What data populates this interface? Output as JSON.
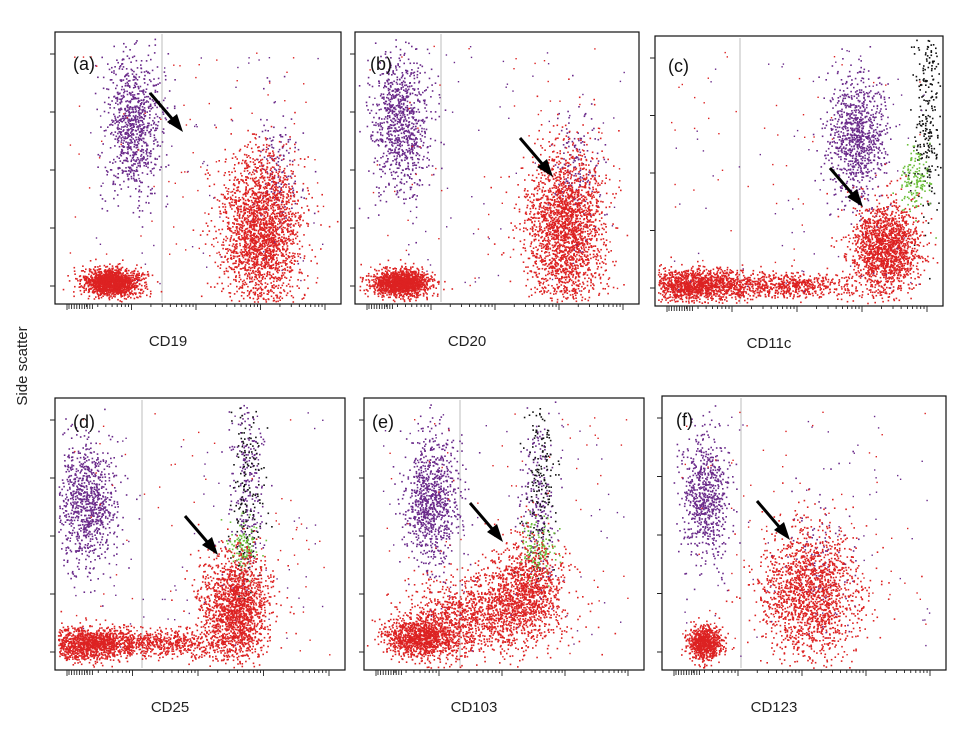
{
  "figure": {
    "y_axis_label": "Side scatter"
  },
  "chart_data": [
    {
      "type": "scatter",
      "panel_label": "(a)",
      "xlabel": "CD19",
      "x_scale": "log",
      "gate_line": true,
      "arrow": true,
      "series": [
        {
          "color": "#dd2222"
        },
        {
          "color": "#6a2a8a"
        },
        {
          "color": "#111111"
        }
      ],
      "clusters": [
        {
          "series": 0,
          "cx": 0.2,
          "cy": 0.08,
          "sx": 0.05,
          "sy": 0.025,
          "n": 1500
        },
        {
          "series": 0,
          "cx": 0.72,
          "cy": 0.27,
          "sx": 0.07,
          "sy": 0.14,
          "n": 2300
        },
        {
          "series": 1,
          "cx": 0.27,
          "cy": 0.66,
          "sx": 0.05,
          "sy": 0.13,
          "n": 900
        },
        {
          "series": 1,
          "cx": 0.78,
          "cy": 0.5,
          "sx": 0.04,
          "sy": 0.12,
          "n": 150
        }
      ]
    },
    {
      "type": "scatter",
      "panel_label": "(b)",
      "xlabel": "CD20",
      "x_scale": "log",
      "gate_line": true,
      "arrow": true,
      "series": [
        {
          "color": "#dd2222"
        },
        {
          "color": "#6a2a8a"
        },
        {
          "color": "#111111"
        }
      ],
      "clusters": [
        {
          "series": 0,
          "cx": 0.16,
          "cy": 0.08,
          "sx": 0.05,
          "sy": 0.025,
          "n": 1500
        },
        {
          "series": 0,
          "cx": 0.74,
          "cy": 0.28,
          "sx": 0.07,
          "sy": 0.14,
          "n": 2200
        },
        {
          "series": 1,
          "cx": 0.16,
          "cy": 0.66,
          "sx": 0.05,
          "sy": 0.13,
          "n": 900
        },
        {
          "series": 1,
          "cx": 0.78,
          "cy": 0.5,
          "sx": 0.04,
          "sy": 0.12,
          "n": 150
        }
      ]
    },
    {
      "type": "scatter",
      "panel_label": "(c)",
      "xlabel": "CD11c",
      "x_scale": "log",
      "gate_line": true,
      "arrow": true,
      "series": [
        {
          "color": "#dd2222"
        },
        {
          "color": "#6a2a8a"
        },
        {
          "color": "#111111"
        },
        {
          "color": "#6bbf3a"
        }
      ],
      "clusters": [
        {
          "series": 0,
          "cx": 0.14,
          "cy": 0.08,
          "sx": 0.09,
          "sy": 0.03,
          "n": 1300
        },
        {
          "series": 0,
          "cx": 0.46,
          "cy": 0.08,
          "sx": 0.14,
          "sy": 0.025,
          "n": 700
        },
        {
          "series": 0,
          "cx": 0.8,
          "cy": 0.22,
          "sx": 0.06,
          "sy": 0.08,
          "n": 1600
        },
        {
          "series": 1,
          "cx": 0.7,
          "cy": 0.63,
          "sx": 0.05,
          "sy": 0.12,
          "n": 900
        },
        {
          "series": 2,
          "cx": 0.94,
          "cy": 0.7,
          "sx": 0.025,
          "sy": 0.18,
          "n": 260
        },
        {
          "series": 3,
          "cx": 0.9,
          "cy": 0.47,
          "sx": 0.025,
          "sy": 0.06,
          "n": 140
        }
      ]
    },
    {
      "type": "scatter",
      "panel_label": "(d)",
      "xlabel": "CD25",
      "x_scale": "log",
      "gate_line": true,
      "arrow": true,
      "series": [
        {
          "color": "#dd2222"
        },
        {
          "color": "#6a2a8a"
        },
        {
          "color": "#111111"
        },
        {
          "color": "#6bbf3a"
        }
      ],
      "clusters": [
        {
          "series": 0,
          "cx": 0.12,
          "cy": 0.1,
          "sx": 0.08,
          "sy": 0.03,
          "n": 1300
        },
        {
          "series": 0,
          "cx": 0.38,
          "cy": 0.1,
          "sx": 0.12,
          "sy": 0.025,
          "n": 600
        },
        {
          "series": 0,
          "cx": 0.62,
          "cy": 0.22,
          "sx": 0.06,
          "sy": 0.1,
          "n": 1700
        },
        {
          "series": 1,
          "cx": 0.11,
          "cy": 0.62,
          "sx": 0.05,
          "sy": 0.12,
          "n": 900
        },
        {
          "series": 1,
          "cx": 0.66,
          "cy": 0.65,
          "sx": 0.03,
          "sy": 0.18,
          "n": 250
        },
        {
          "series": 2,
          "cx": 0.66,
          "cy": 0.7,
          "sx": 0.03,
          "sy": 0.18,
          "n": 170
        },
        {
          "series": 3,
          "cx": 0.65,
          "cy": 0.45,
          "sx": 0.025,
          "sy": 0.05,
          "n": 130
        }
      ]
    },
    {
      "type": "scatter",
      "panel_label": "(e)",
      "xlabel": "CD103",
      "x_scale": "log",
      "gate_line": true,
      "arrow": true,
      "series": [
        {
          "color": "#dd2222"
        },
        {
          "color": "#6a2a8a"
        },
        {
          "color": "#111111"
        },
        {
          "color": "#6bbf3a"
        }
      ],
      "clusters": [
        {
          "series": 0,
          "cx": 0.2,
          "cy": 0.12,
          "sx": 0.07,
          "sy": 0.04,
          "n": 1200
        },
        {
          "series": 0,
          "cx": 0.42,
          "cy": 0.2,
          "sx": 0.13,
          "sy": 0.07,
          "n": 1200
        },
        {
          "series": 0,
          "cx": 0.58,
          "cy": 0.3,
          "sx": 0.07,
          "sy": 0.09,
          "n": 1000
        },
        {
          "series": 1,
          "cx": 0.24,
          "cy": 0.62,
          "sx": 0.05,
          "sy": 0.12,
          "n": 900
        },
        {
          "series": 1,
          "cx": 0.62,
          "cy": 0.62,
          "sx": 0.03,
          "sy": 0.17,
          "n": 230
        },
        {
          "series": 2,
          "cx": 0.63,
          "cy": 0.7,
          "sx": 0.03,
          "sy": 0.17,
          "n": 170
        },
        {
          "series": 3,
          "cx": 0.62,
          "cy": 0.44,
          "sx": 0.03,
          "sy": 0.05,
          "n": 130
        }
      ]
    },
    {
      "type": "scatter",
      "panel_label": "(f)",
      "xlabel": "CD123",
      "x_scale": "log",
      "gate_line": true,
      "arrow": true,
      "series": [
        {
          "color": "#dd2222"
        },
        {
          "color": "#6a2a8a"
        },
        {
          "color": "#111111"
        }
      ],
      "clusters": [
        {
          "series": 0,
          "cx": 0.15,
          "cy": 0.1,
          "sx": 0.03,
          "sy": 0.03,
          "n": 800
        },
        {
          "series": 0,
          "cx": 0.52,
          "cy": 0.28,
          "sx": 0.09,
          "sy": 0.12,
          "n": 1700
        },
        {
          "series": 1,
          "cx": 0.15,
          "cy": 0.64,
          "sx": 0.04,
          "sy": 0.11,
          "n": 700
        },
        {
          "series": 1,
          "cx": 0.56,
          "cy": 0.4,
          "sx": 0.06,
          "sy": 0.12,
          "n": 100
        }
      ]
    }
  ]
}
